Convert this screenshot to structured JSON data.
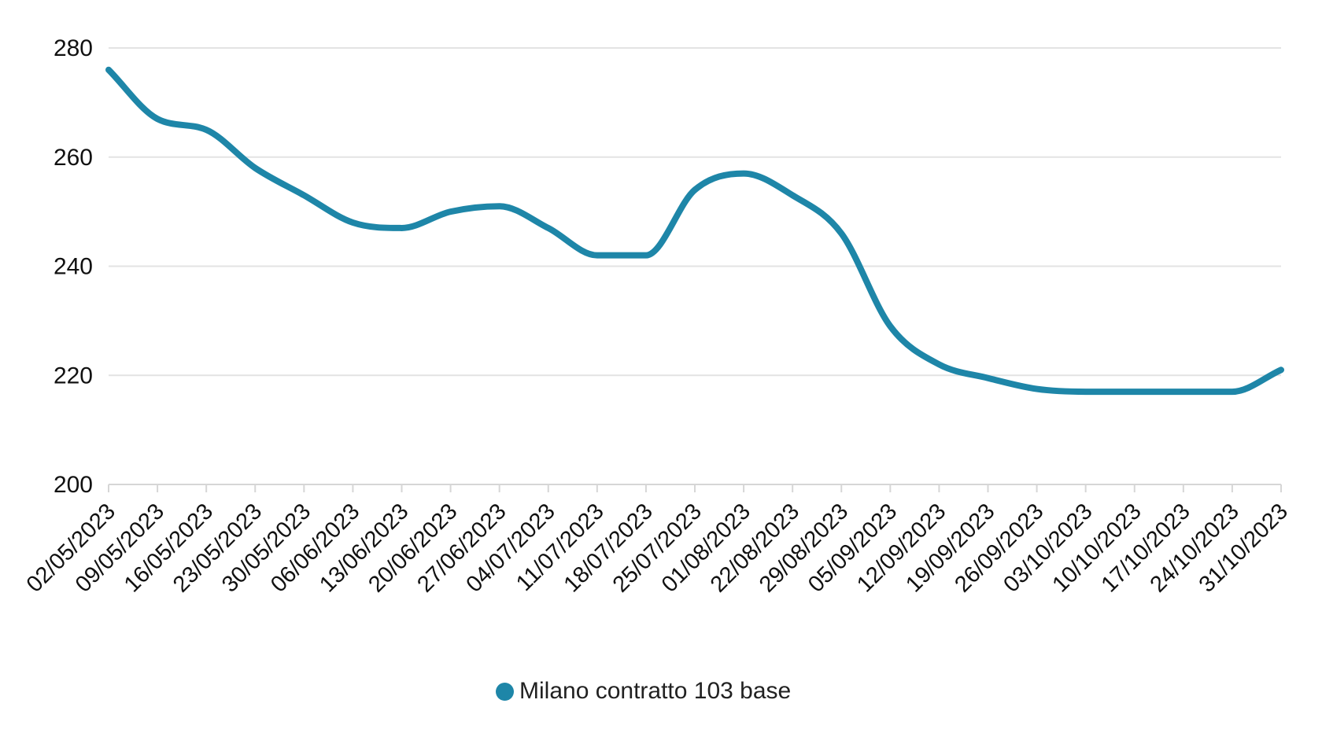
{
  "chart_data": {
    "type": "line",
    "title": "",
    "categories": [
      "02/05/2023",
      "09/05/2023",
      "16/05/2023",
      "23/05/2023",
      "30/05/2023",
      "06/06/2023",
      "13/06/2023",
      "20/06/2023",
      "27/06/2023",
      "04/07/2023",
      "11/07/2023",
      "18/07/2023",
      "25/07/2023",
      "01/08/2023",
      "22/08/2023",
      "29/08/2023",
      "05/09/2023",
      "12/09/2023",
      "19/09/2023",
      "26/09/2023",
      "03/10/2023",
      "10/10/2023",
      "17/10/2023",
      "24/10/2023",
      "31/10/2023"
    ],
    "series": [
      {
        "name": "Milano contratto 103 base",
        "color": "#1E86A8",
        "values": [
          276,
          267,
          265,
          258,
          253,
          248,
          247,
          250,
          251,
          247,
          242,
          242,
          254,
          257,
          253,
          246,
          229,
          222,
          219.5,
          217.5,
          217,
          217,
          217,
          217,
          221
        ]
      }
    ],
    "xlabel": "",
    "ylabel": "",
    "ylim": [
      200,
      280
    ],
    "yticks": [
      200,
      220,
      240,
      260,
      280
    ],
    "grid": "horizontal-only",
    "line_smoothing": "monotone",
    "legend_position": "bottom"
  },
  "legend": {
    "label": "Milano contratto 103 base",
    "marker_color": "#1E86A8"
  },
  "axes": {
    "x_tick_label_rotation_deg": -45,
    "text_color": "#111111",
    "grid_color": "#E3E3E3",
    "axis_color": "#D6D6D6"
  }
}
